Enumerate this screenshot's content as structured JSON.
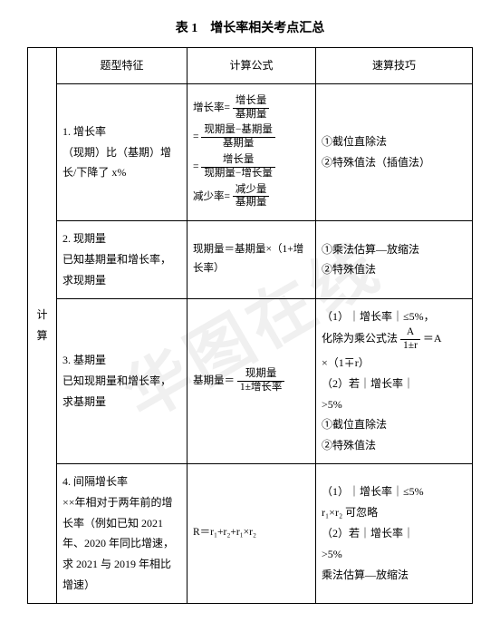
{
  "title": "表 1　增长率相关考点汇总",
  "watermark": "华图在线",
  "headers": {
    "feature": "题型特征",
    "formula": "计算公式",
    "trick": "速算技巧"
  },
  "category": "计算",
  "rows": {
    "r1": {
      "feature_title": "1. 增长率",
      "feature_body": "（现期）比（基期）增长/下降了 x%",
      "formula": {
        "label_growth": "增长率=",
        "f1_num": "增长量",
        "f1_den": "基期量",
        "eq": "=",
        "f2_num": "现期量−基期量",
        "f2_den": "基期量",
        "f3_num": "增长量",
        "f3_den": "现期量−增长量",
        "label_decline": "减少率=",
        "f4_num": "减少量",
        "f4_den": "基期量"
      },
      "trick1": "①截位直除法",
      "trick2": "②特殊值法（插值法）"
    },
    "r2": {
      "feature_title": "2. 现期量",
      "feature_body": "已知基期量和增长率，求现期量",
      "formula_text": "现期量＝基期量×（1+增长率）",
      "trick1": "①乘法估算—放缩法",
      "trick2": "②特殊值法"
    },
    "r3": {
      "feature_title": "3. 基期量",
      "feature_body": "已知现期量和增长率，求基期量",
      "formula_label": "基期量＝",
      "formula_num": "现期量",
      "formula_den": "1±增长率",
      "trick_a1": "（1）｜增长率｜≤5%，",
      "trick_a2a": "化除为乘公式法",
      "trick_a2_num": "A",
      "trick_a2_den": "1±r",
      "trick_a2b": "＝A",
      "trick_a3": "×（1∓r）",
      "trick_b1": "（2）若｜增长率｜",
      "trick_b2": ">5%",
      "trick_b3": "①截位直除法",
      "trick_b4": "②特殊值法"
    },
    "r4": {
      "feature_title": "4. 间隔增长率",
      "feature_body": "××年相对于两年前的增长率（例如已知 2021 年、2020 年同比增速，求 2021 与 2019 年相比增速）",
      "formula_text": "R＝r₁+r₂+r₁×r₂",
      "trick_a1": "（1）｜增长率｜≤5%",
      "trick_a2": "r₁×r₂ 可忽略",
      "trick_b1": "（2）若｜增长率｜",
      "trick_b2": ">5%",
      "trick_b3": "乘法估算—放缩法"
    }
  }
}
